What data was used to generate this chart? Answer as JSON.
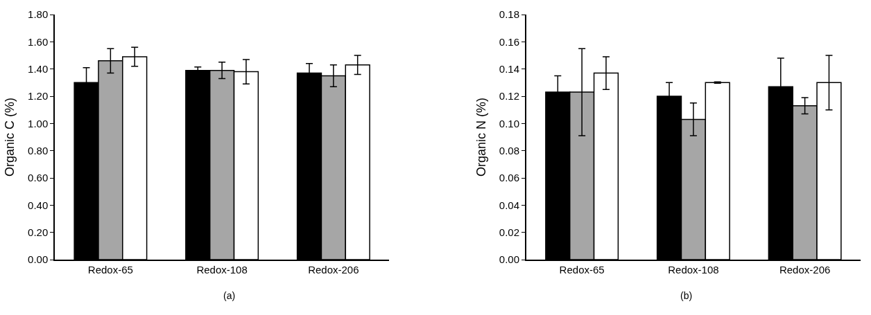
{
  "chart_data": [
    {
      "type": "bar",
      "ylabel": "Organic C (%)",
      "categories": [
        "Redox-65",
        "Redox-108",
        "Redox-206"
      ],
      "ylim": [
        0,
        1.8
      ],
      "yticks": [
        {
          "value": 0,
          "label": "0.00"
        },
        {
          "value": 0.2,
          "label": "0.20"
        },
        {
          "value": 0.4,
          "label": "0.40"
        },
        {
          "value": 0.6,
          "label": "0.60"
        },
        {
          "value": 0.8,
          "label": "0.80"
        },
        {
          "value": 1.0,
          "label": "1.00"
        },
        {
          "value": 1.2,
          "label": "1.20"
        },
        {
          "value": 1.4,
          "label": "1.40"
        },
        {
          "value": 1.6,
          "label": "1.60"
        },
        {
          "value": 1.8,
          "label": "1.80"
        }
      ],
      "annotations": [
        "(a)"
      ],
      "series": [
        {
          "color": "#000000",
          "values": [
            1.3,
            1.39,
            1.37
          ],
          "errors": [
            0.11,
            0.025,
            0.07
          ]
        },
        {
          "color": "#a6a6a6",
          "values": [
            1.46,
            1.39,
            1.35
          ],
          "errors": [
            0.09,
            0.06,
            0.08
          ]
        },
        {
          "color": "#ffffff",
          "values": [
            1.49,
            1.38,
            1.43
          ],
          "errors": [
            0.07,
            0.09,
            0.07
          ]
        }
      ]
    },
    {
      "type": "bar",
      "ylabel": "Organic N (%)",
      "categories": [
        "Redox-65",
        "Redox-108",
        "Redox-206"
      ],
      "ylim": [
        0,
        0.18
      ],
      "yticks": [
        {
          "value": 0,
          "label": "0.00"
        },
        {
          "value": 0.02,
          "label": "0.02"
        },
        {
          "value": 0.04,
          "label": "0.04"
        },
        {
          "value": 0.06,
          "label": "0.06"
        },
        {
          "value": 0.08,
          "label": "0.08"
        },
        {
          "value": 0.1,
          "label": "0.10"
        },
        {
          "value": 0.12,
          "label": "0.12"
        },
        {
          "value": 0.14,
          "label": "0.14"
        },
        {
          "value": 0.16,
          "label": "0.16"
        },
        {
          "value": 0.18,
          "label": "0.18"
        }
      ],
      "annotations": [
        "(b)"
      ],
      "series": [
        {
          "color": "#000000",
          "values": [
            0.123,
            0.12,
            0.127
          ],
          "errors": [
            0.012,
            0.01,
            0.021
          ]
        },
        {
          "color": "#a6a6a6",
          "values": [
            0.123,
            0.103,
            0.113
          ],
          "errors": [
            0.032,
            0.012,
            0.006
          ]
        },
        {
          "color": "#ffffff",
          "values": [
            0.137,
            0.13,
            0.13
          ],
          "errors": [
            0.012,
            0.0005,
            0.02
          ]
        }
      ]
    }
  ]
}
